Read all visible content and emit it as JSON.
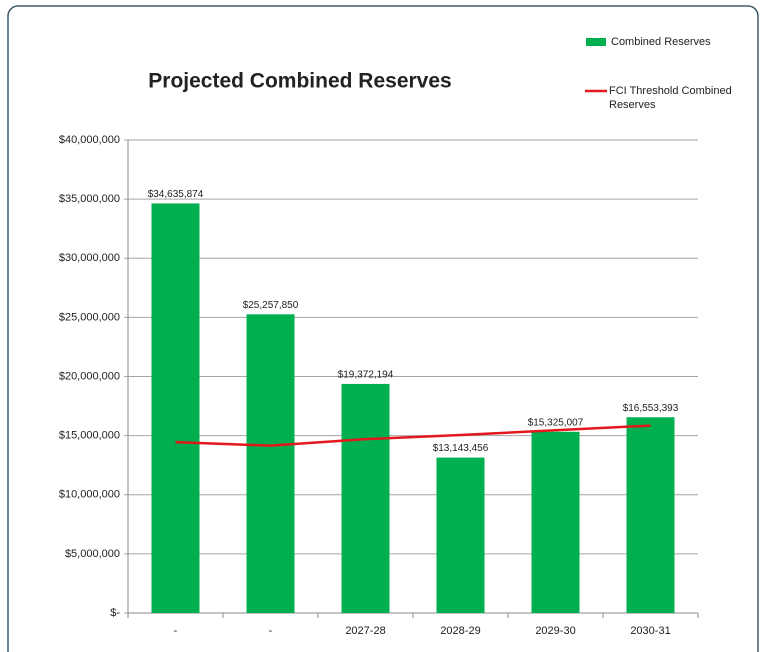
{
  "chart_data": {
    "type": "combo",
    "title": "Projected Combined Reserves",
    "categories": [
      "-",
      "-",
      "2027-28",
      "2028-29",
      "2029-30",
      "2030-31"
    ],
    "series": [
      {
        "name": "Combined Reserves",
        "type": "bar",
        "color": "#00b050",
        "values": [
          34635874,
          25257850,
          19372194,
          13143456,
          15325007,
          16553393
        ],
        "value_labels": [
          "$34,635,874",
          "$25,257,850",
          "$19,372,194",
          "$13,143,456",
          "$15,325,007",
          "$16,553,393"
        ]
      },
      {
        "name": "FCI Threshold Combined Reserves",
        "type": "line",
        "color": "#e3171c",
        "values": [
          14450000,
          14150000,
          14700000,
          15050000,
          15450000,
          15850000
        ]
      }
    ],
    "ylim": [
      0,
      40000000
    ],
    "yticks": [
      {
        "value": 0,
        "label": "$-"
      },
      {
        "value": 5000000,
        "label": "$5,000,000"
      },
      {
        "value": 10000000,
        "label": "$10,000,000"
      },
      {
        "value": 15000000,
        "label": "$15,000,000"
      },
      {
        "value": 20000000,
        "label": "$20,000,000"
      },
      {
        "value": 25000000,
        "label": "$25,000,000"
      },
      {
        "value": 30000000,
        "label": "$30,000,000"
      },
      {
        "value": 35000000,
        "label": "$35,000,000"
      },
      {
        "value": 40000000,
        "label": "$40,000,000"
      }
    ],
    "grid": true,
    "legend": "top-right"
  }
}
